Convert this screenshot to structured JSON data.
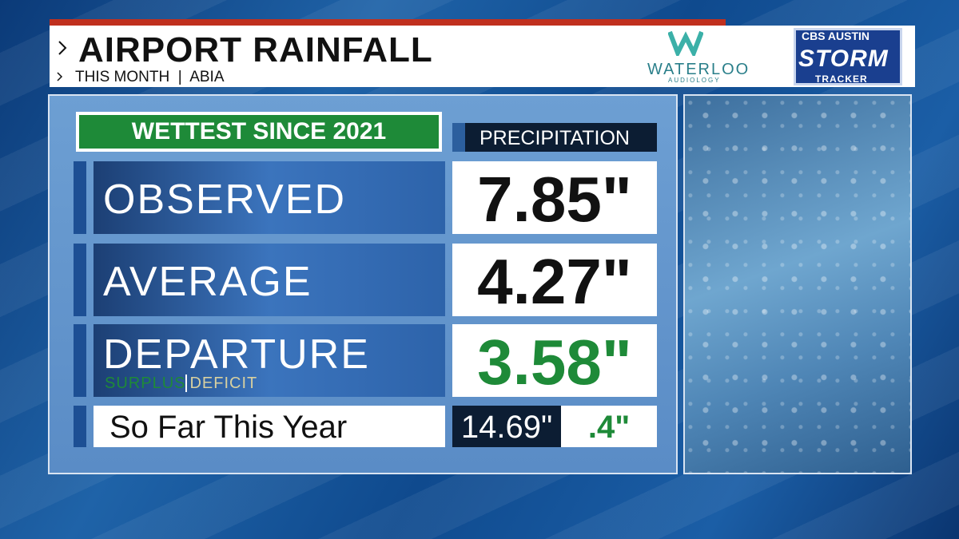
{
  "header": {
    "title": "AIRPORT RAINFALL",
    "subtitle": "THIS MONTH  |  ABIA"
  },
  "sponsor": {
    "name": "WATERLOO",
    "tagline": "AUDIOLOGY"
  },
  "logo": {
    "network": "CBS AUSTIN",
    "brand": "STORM",
    "tagline": "TRACKER"
  },
  "badge": "WETTEST SINCE 2021",
  "column_header": "PRECIPITATION",
  "rows": [
    {
      "label": "OBSERVED",
      "value": "7.85\""
    },
    {
      "label": "AVERAGE",
      "value": "4.27\""
    },
    {
      "label": "DEPARTURE",
      "value": "3.58\"",
      "legend": [
        "SURPLUS",
        "DEFICIT"
      ]
    }
  ],
  "year_row": {
    "label": "So Far This Year",
    "total": "14.69\"",
    "departure": ".4\""
  }
}
